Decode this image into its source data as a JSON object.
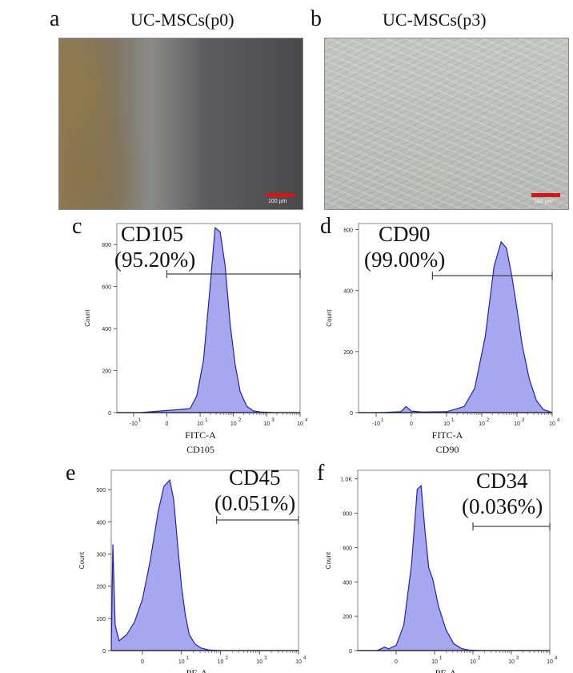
{
  "figure": {
    "panel_a": {
      "letter": "a",
      "title": "UC-MSCs(p0)",
      "scale_label": "100 μm"
    },
    "panel_b": {
      "letter": "b",
      "title": "UC-MSCs(p3)",
      "scale_label": "100 μm"
    },
    "colors": {
      "fill": "#a7a7ef",
      "stroke": "#2222aa",
      "scale_bar": "#d01818"
    }
  },
  "chart_data": [
    {
      "id": "c",
      "letter": "c",
      "type": "area",
      "marker": "CD105",
      "percent": "(95.20%)",
      "xlabel": "FITC-A",
      "xsublabel": "CD105",
      "ylabel": "Count",
      "ylim": [
        0,
        900
      ],
      "yticks": [
        0,
        200,
        400,
        600,
        800
      ],
      "ytick_labels": [
        "0",
        "200",
        "400",
        "600",
        "800"
      ],
      "xlim": [
        -1.5,
        4.0
      ],
      "xticks": [
        -1,
        0,
        1,
        2,
        3,
        4
      ],
      "xtick_labels": [
        "-10",
        "0",
        "10",
        "10",
        "10",
        "10"
      ],
      "xtick_exponents": [
        "1",
        "",
        "1",
        "2",
        "3",
        "4"
      ],
      "gate": [
        0.0,
        4.0
      ],
      "x": [
        -1.5,
        -0.8,
        0.0,
        0.4,
        0.7,
        0.9,
        1.1,
        1.3,
        1.45,
        1.6,
        1.75,
        1.9,
        2.05,
        2.2,
        2.4,
        2.6,
        2.8,
        3.2,
        4.0
      ],
      "y": [
        0,
        0,
        10,
        15,
        20,
        80,
        250,
        600,
        880,
        860,
        700,
        420,
        230,
        100,
        30,
        8,
        3,
        0,
        0
      ]
    },
    {
      "id": "d",
      "letter": "d",
      "type": "area",
      "marker": "CD90",
      "percent": "(99.00%)",
      "xlabel": "FITC-A",
      "xsublabel": "CD90",
      "ylabel": "Count",
      "ylim": [
        0,
        620
      ],
      "yticks": [
        0,
        200,
        400,
        600
      ],
      "ytick_labels": [
        "0",
        "200",
        "400",
        "600"
      ],
      "xlim": [
        -1.5,
        4.0
      ],
      "xticks": [
        -1,
        0,
        1,
        2,
        3,
        4
      ],
      "xtick_labels": [
        "-10",
        "0",
        "10",
        "10",
        "10",
        "10"
      ],
      "xtick_exponents": [
        "1",
        "",
        "1",
        "2",
        "3",
        "4"
      ],
      "gate": [
        0.6,
        4.0
      ],
      "x": [
        -1.5,
        -0.9,
        -0.3,
        -0.15,
        0.0,
        0.3,
        1.0,
        1.5,
        1.8,
        2.1,
        2.35,
        2.55,
        2.7,
        2.85,
        3.0,
        3.15,
        3.35,
        3.55,
        3.75,
        4.0
      ],
      "y": [
        0,
        0,
        3,
        20,
        5,
        2,
        3,
        20,
        80,
        250,
        480,
        560,
        540,
        450,
        340,
        220,
        110,
        40,
        10,
        0
      ]
    },
    {
      "id": "e",
      "letter": "e",
      "type": "area",
      "marker": "CD45",
      "percent": "(0.051%)",
      "xlabel": "PE-A",
      "xsublabel": "",
      "ylabel": "Count",
      "ylim": [
        0,
        560
      ],
      "yticks": [
        0,
        100,
        200,
        300,
        400,
        500
      ],
      "ytick_labels": [
        "0",
        "100",
        "200",
        "300",
        "400",
        "500"
      ],
      "xlim": [
        -0.8,
        4.0
      ],
      "xticks": [
        0,
        1,
        2,
        3,
        4
      ],
      "xtick_labels": [
        "0",
        "10",
        "10",
        "10",
        "10"
      ],
      "xtick_exponents": [
        "",
        "1",
        "2",
        "3",
        "4"
      ],
      "gate": [
        1.9,
        4.0
      ],
      "x": [
        -0.8,
        -0.76,
        -0.7,
        -0.6,
        -0.4,
        -0.2,
        0.0,
        0.2,
        0.4,
        0.55,
        0.7,
        0.8,
        0.9,
        1.0,
        1.1,
        1.2,
        1.35,
        1.5,
        1.7,
        2.0,
        4.0
      ],
      "y": [
        0,
        330,
        80,
        30,
        50,
        90,
        160,
        280,
        430,
        510,
        530,
        470,
        330,
        200,
        110,
        50,
        20,
        8,
        2,
        0,
        0
      ]
    },
    {
      "id": "f",
      "letter": "f",
      "type": "area",
      "marker": "CD34",
      "percent": "(0.036%)",
      "xlabel": "PE-A",
      "xsublabel": "",
      "ylabel": "Count",
      "ylim": [
        0,
        1050
      ],
      "yticks": [
        0,
        200,
        400,
        600,
        800,
        1000
      ],
      "ytick_labels": [
        "0",
        "200",
        "400",
        "600",
        "800",
        "1.0K"
      ],
      "xlim": [
        -1.0,
        4.0
      ],
      "xticks": [
        0,
        1,
        2,
        3,
        4
      ],
      "xtick_labels": [
        "0",
        "10",
        "10",
        "10",
        "10"
      ],
      "xtick_exponents": [
        "",
        "1",
        "2",
        "3",
        "4"
      ],
      "gate": [
        2.0,
        4.0
      ],
      "x": [
        -1.0,
        -0.5,
        -0.3,
        -0.2,
        0.0,
        0.2,
        0.4,
        0.55,
        0.65,
        0.75,
        0.85,
        0.95,
        1.1,
        1.3,
        1.5,
        1.7,
        1.9,
        2.2,
        4.0
      ],
      "y": [
        0,
        0,
        20,
        10,
        30,
        150,
        500,
        940,
        960,
        700,
        480,
        420,
        260,
        120,
        40,
        12,
        3,
        0,
        0
      ]
    }
  ]
}
